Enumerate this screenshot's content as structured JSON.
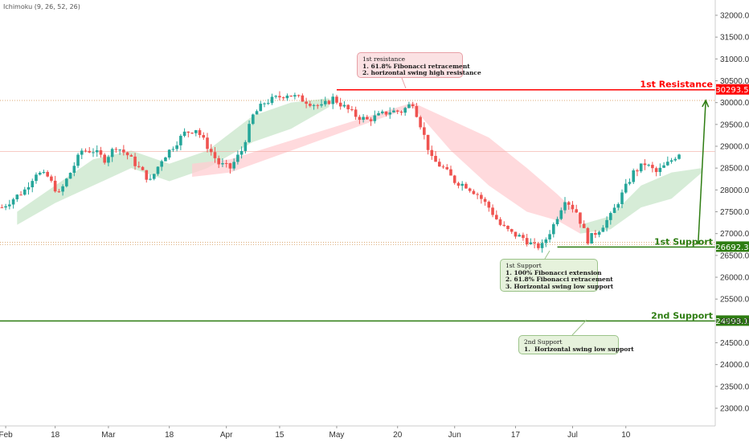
{
  "indicator_label": "Ichimoku (9, 26, 52, 26)",
  "colors": {
    "up": "#26a69a",
    "down": "#ef5350",
    "resistance": "#ff0000",
    "support": "#2e7d12",
    "cloud_bull": "#c8e6c9",
    "cloud_bear": "#ffcdd2",
    "arrow": "#2e7d12"
  },
  "chart_data": {
    "type": "candlestick",
    "x_ticks": [
      "Feb",
      "18",
      "Mar",
      "18",
      "Apr",
      "15",
      "May",
      "20",
      "Jun",
      "17",
      "Jul",
      "10"
    ],
    "y_ticks": [
      "32000.0",
      "31500.0",
      "31000.0",
      "30500.0",
      "30000.0",
      "29500.0",
      "29000.0",
      "28500.0",
      "28000.0",
      "27500.0",
      "27000.0",
      "26500.0",
      "26000.0",
      "25500.0",
      "25000.0",
      "24500.0",
      "24000.0",
      "23500.0",
      "23000.0"
    ],
    "ylim": [
      22800,
      32300
    ],
    "price_path": [
      [
        0,
        27600
      ],
      [
        3,
        27800
      ],
      [
        6,
        28000
      ],
      [
        9,
        28400
      ],
      [
        12,
        28300
      ],
      [
        15,
        27900
      ],
      [
        18,
        28400
      ],
      [
        21,
        28900
      ],
      [
        24,
        28900
      ],
      [
        27,
        28700
      ],
      [
        30,
        29000
      ],
      [
        33,
        28800
      ],
      [
        36,
        28500
      ],
      [
        39,
        28200
      ],
      [
        42,
        28700
      ],
      [
        45,
        29000
      ],
      [
        48,
        29300
      ],
      [
        51,
        29400
      ],
      [
        54,
        29000
      ],
      [
        57,
        28600
      ],
      [
        60,
        28500
      ],
      [
        63,
        28900
      ],
      [
        66,
        29700
      ],
      [
        69,
        30000
      ],
      [
        72,
        30100
      ],
      [
        75,
        30200
      ],
      [
        78,
        30100
      ],
      [
        81,
        30000
      ],
      [
        84,
        29900
      ],
      [
        87,
        30100
      ],
      [
        90,
        29900
      ],
      [
        93,
        29700
      ],
      [
        96,
        29600
      ],
      [
        99,
        29700
      ],
      [
        102,
        29800
      ],
      [
        105,
        29800
      ],
      [
        108,
        30000
      ],
      [
        110,
        29500
      ],
      [
        113,
        28700
      ],
      [
        116,
        28500
      ],
      [
        119,
        28200
      ],
      [
        122,
        28100
      ],
      [
        125,
        27900
      ],
      [
        128,
        27600
      ],
      [
        131,
        27200
      ],
      [
        134,
        27000
      ],
      [
        137,
        26900
      ],
      [
        140,
        26700
      ],
      [
        142,
        26720
      ],
      [
        145,
        27200
      ],
      [
        148,
        27800
      ],
      [
        151,
        27500
      ],
      [
        154,
        26850
      ],
      [
        157,
        27100
      ],
      [
        160,
        27400
      ],
      [
        163,
        27900
      ],
      [
        166,
        28400
      ],
      [
        169,
        28600
      ],
      [
        172,
        28400
      ],
      [
        175,
        28600
      ],
      [
        178,
        28850
      ]
    ],
    "cloud_segments": [
      {
        "trend": "bull",
        "points": [
          [
            4,
            27200,
            27500
          ],
          [
            14,
            27700,
            28100
          ],
          [
            24,
            28100,
            28700
          ],
          [
            34,
            28500,
            28900
          ],
          [
            44,
            28200,
            28600
          ],
          [
            54,
            28500,
            28900
          ],
          [
            66,
            29100,
            29700
          ],
          [
            76,
            29400,
            30000
          ],
          [
            86,
            29900,
            30100
          ]
        ]
      },
      {
        "trend": "bear",
        "points": [
          [
            50,
            28300,
            28600
          ],
          [
            60,
            28400,
            28700
          ],
          [
            108,
            29900,
            30000
          ],
          [
            118,
            28900,
            29600
          ],
          [
            128,
            28100,
            29200
          ],
          [
            138,
            27500,
            28500
          ],
          [
            146,
            27300,
            27900
          ],
          [
            152,
            27000,
            27400
          ]
        ]
      },
      {
        "trend": "bull",
        "points": [
          [
            152,
            27000,
            27200
          ],
          [
            160,
            27100,
            27400
          ],
          [
            168,
            27600,
            28100
          ],
          [
            176,
            27800,
            28400
          ],
          [
            184,
            28400,
            28500
          ]
        ]
      }
    ],
    "horizontal_dotted": [
      30050,
      28880,
      26800,
      26750
    ],
    "levels": [
      {
        "label": "1st Resistance",
        "value": "30293.5",
        "price": 30293.5,
        "kind": "resistance",
        "start": 88
      },
      {
        "label": "1st Support",
        "value": "26692.3",
        "price": 26692.3,
        "kind": "support",
        "start": 146
      },
      {
        "label": "2nd Support",
        "value": "24998.1",
        "price": 24998.1,
        "kind": "support",
        "start": 0
      }
    ],
    "annotations": [
      {
        "id": "res1",
        "lines": [
          "1st resistance",
          "1. 61.8% Fibonacci retracement",
          "2. horizontal swing high resistance"
        ]
      },
      {
        "id": "sup1",
        "lines": [
          "1st Support",
          "1. 100% Fibonacci extension",
          "2. 61.8% Fibonacci retracement",
          "3. Horizontal swing low support"
        ]
      },
      {
        "id": "sup2",
        "lines": [
          "2nd Support",
          "1.  Horizontal swing low support"
        ]
      }
    ],
    "arrow": {
      "from": [
        183,
        26750
      ],
      "to": [
        185,
        30050
      ]
    }
  }
}
